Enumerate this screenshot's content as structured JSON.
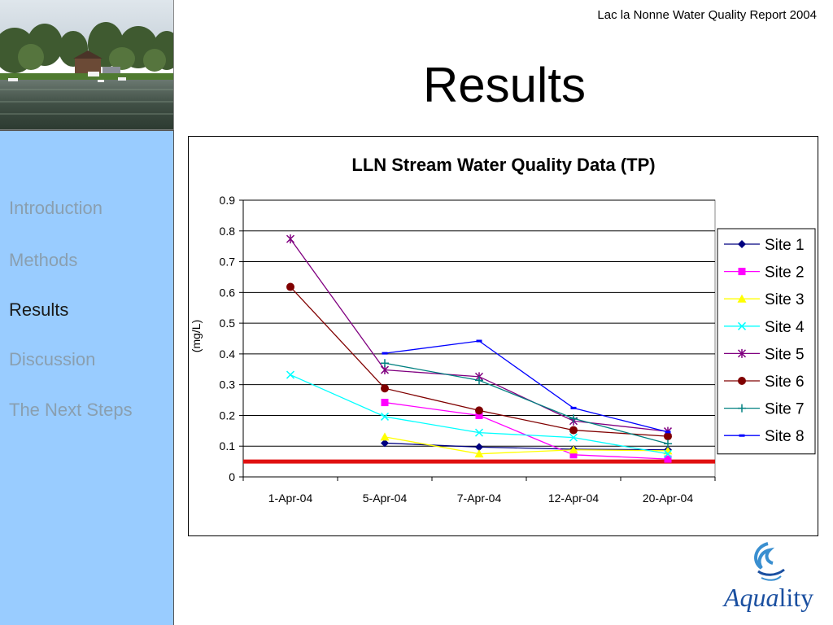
{
  "header": {
    "report_title": "Lac la Nonne Water Quality Report 2004",
    "page_title": "Results"
  },
  "sidebar": {
    "items": [
      {
        "label": "Introduction",
        "active": false
      },
      {
        "label": "Methods",
        "active": false
      },
      {
        "label": "Results",
        "active": true
      },
      {
        "label": "Discussion",
        "active": false
      },
      {
        "label": "The Next Steps",
        "active": false
      }
    ]
  },
  "logo": {
    "text_italic": "Aqua",
    "text_regular": "lity"
  },
  "colors": {
    "sidebar_bg": "#99ccff",
    "nav_inactive": "#8a9fb0",
    "threshold": "#e01010"
  },
  "chart_data": {
    "type": "line",
    "title": "LLN Stream Water Quality Data (TP)",
    "xlabel": "",
    "ylabel": "(mg/L)",
    "categories": [
      "1-Apr-04",
      "5-Apr-04",
      "7-Apr-04",
      "12-Apr-04",
      "20-Apr-04"
    ],
    "ylim": [
      0,
      0.9
    ],
    "yticks": [
      "0",
      "0.1",
      "0.2",
      "0.3",
      "0.4",
      "0.5",
      "0.6",
      "0.7",
      "0.8",
      "0.9"
    ],
    "grid": true,
    "legend_position": "right",
    "threshold": {
      "value": 0.05,
      "color": "#e01010"
    },
    "series": [
      {
        "name": "Site 1",
        "color": "#000080",
        "marker": "diamond",
        "values": [
          null,
          0.11,
          0.097,
          0.09,
          0.088
        ]
      },
      {
        "name": "Site 2",
        "color": "#ff00ff",
        "marker": "square",
        "values": [
          null,
          0.242,
          0.2,
          0.072,
          0.058
        ]
      },
      {
        "name": "Site 3",
        "color": "#ffff00",
        "marker": "triangle",
        "values": [
          null,
          0.13,
          0.075,
          0.088,
          0.085
        ]
      },
      {
        "name": "Site 4",
        "color": "#00ffff",
        "marker": "x",
        "values": [
          0.332,
          0.196,
          0.144,
          0.128,
          0.075
        ]
      },
      {
        "name": "Site 5",
        "color": "#800080",
        "marker": "star",
        "values": [
          0.774,
          0.348,
          0.326,
          0.182,
          0.148
        ]
      },
      {
        "name": "Site 6",
        "color": "#800000",
        "marker": "circle",
        "values": [
          0.618,
          0.288,
          0.216,
          0.152,
          0.132
        ]
      },
      {
        "name": "Site 7",
        "color": "#008080",
        "marker": "plus",
        "values": [
          null,
          0.37,
          0.314,
          0.19,
          0.108
        ]
      },
      {
        "name": "Site 8",
        "color": "#0000ff",
        "marker": "dash",
        "values": [
          null,
          0.402,
          0.442,
          0.224,
          0.146
        ]
      }
    ]
  }
}
